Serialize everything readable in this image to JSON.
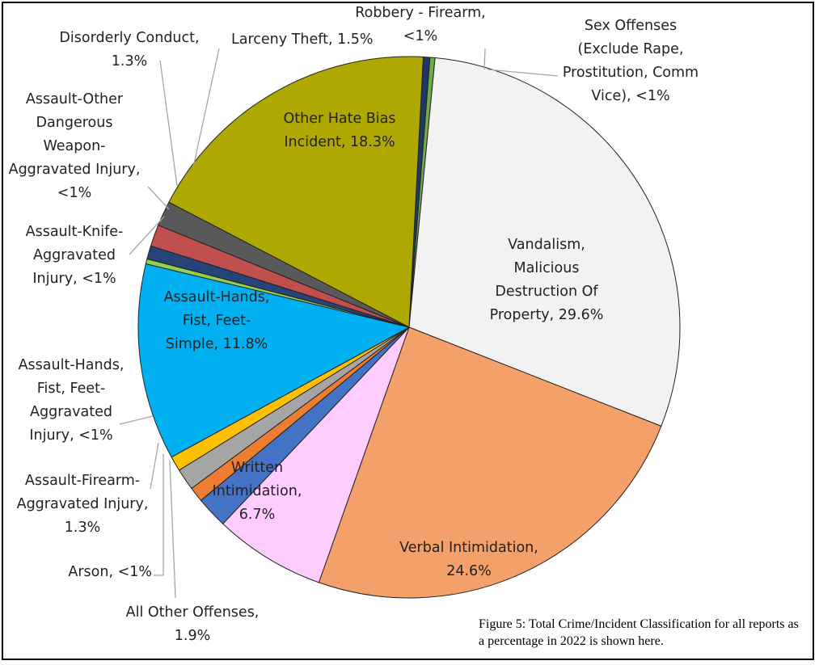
{
  "chart_data": {
    "type": "pie",
    "title": "",
    "start_angle_deg": -87,
    "direction": "clockwise",
    "slices": [
      {
        "label": "Robbery - Firearm, <1%",
        "value": 0.4,
        "color": "#203864",
        "label_inside": false
      },
      {
        "label": "Sex Offenses (Exclude Rape, Prostitution, Comm Vice), <1%",
        "value": 0.3,
        "color": "#70ad47",
        "label_inside": false
      },
      {
        "label": "Vandalism, Malicious Destruction Of Property, 29.6%",
        "value": 29.6,
        "color": "#f2f2f2",
        "label_inside": true
      },
      {
        "label": "Verbal Intimidation, 24.6%",
        "value": 24.6,
        "color": "#f4a06a",
        "label_inside": true
      },
      {
        "label": "Written Intimidation, 6.7%",
        "value": 6.7,
        "color": "#ffccff",
        "label_inside": true
      },
      {
        "label": "All Other Offenses, 1.9%",
        "value": 1.9,
        "color": "#4472c4",
        "label_inside": false
      },
      {
        "label": "Arson, <1%",
        "value": 0.9,
        "color": "#ed7d31",
        "label_inside": false
      },
      {
        "label": "Assault-Firearm-Aggravated Injury, 1.3%",
        "value": 1.3,
        "color": "#a5a5a5",
        "label_inside": false
      },
      {
        "label": "Assault-Hands, Fist, Feet-Aggravated Injury, <1%",
        "value": 0.9,
        "color": "#ffc000",
        "label_inside": false
      },
      {
        "label": "Assault-Hands, Fist, Feet-Simple, 11.8%",
        "value": 11.8,
        "color": "#00b0f0",
        "label_inside": true
      },
      {
        "label": "Assault-Knife-Aggravated Injury, <1%",
        "value": 0.3,
        "color": "#92d050",
        "label_inside": false
      },
      {
        "label": "Assault-Other Dangerous Weapon-Aggravated Injury, <1%",
        "value": 0.8,
        "color": "#264478",
        "label_inside": false
      },
      {
        "label": "Disorderly Conduct, 1.3%",
        "value": 1.3,
        "color": "#c0504d",
        "label_inside": false
      },
      {
        "label": "Larceny Theft, 1.5%",
        "value": 1.5,
        "color": "#595959",
        "label_inside": false
      },
      {
        "label": "Other Hate Bias Incident, 18.3%",
        "value": 18.3,
        "color": "#afa800",
        "label_inside": true
      }
    ],
    "slice_border_color": "#ffffff"
  },
  "labels": {
    "robbery": [
      "Robbery - Firearm,",
      "<1%"
    ],
    "sex": [
      "Sex Offenses",
      "(Exclude Rape,",
      "Prostitution, Comm",
      "Vice), <1%"
    ],
    "vandalism": [
      "Vandalism,",
      "Malicious",
      "Destruction Of",
      "Property, 29.6%"
    ],
    "verbal": [
      "Verbal Intimidation,",
      "24.6%"
    ],
    "written": [
      "Written",
      "Intimidation,",
      "6.7%"
    ],
    "other_offenses": [
      "All Other Offenses,",
      "1.9%"
    ],
    "arson": [
      "Arson, <1%"
    ],
    "assault_firearm": [
      "Assault-Firearm-",
      "Aggravated Injury,",
      "1.3%"
    ],
    "assault_hands_agg": [
      "Assault-Hands,",
      "Fist, Feet-",
      "Aggravated",
      "Injury, <1%"
    ],
    "assault_hands_simple": [
      "Assault-Hands,",
      "Fist, Feet-",
      "Simple, 11.8%"
    ],
    "assault_knife": [
      "Assault-Knife-",
      "Aggravated",
      "Injury, <1%"
    ],
    "assault_other": [
      "Assault-Other",
      "Dangerous",
      "Weapon-",
      "Aggravated Injury,",
      "<1%"
    ],
    "disorderly": [
      "Disorderly Conduct,",
      "1.3%"
    ],
    "larceny": [
      "Larceny Theft, 1.5%"
    ],
    "hate_bias": [
      "Other Hate Bias",
      "Incident, 18.3%"
    ]
  },
  "caption": "Figure 5: Total Crime/Incident Classification for all reports as a percentage in 2022 is shown here."
}
